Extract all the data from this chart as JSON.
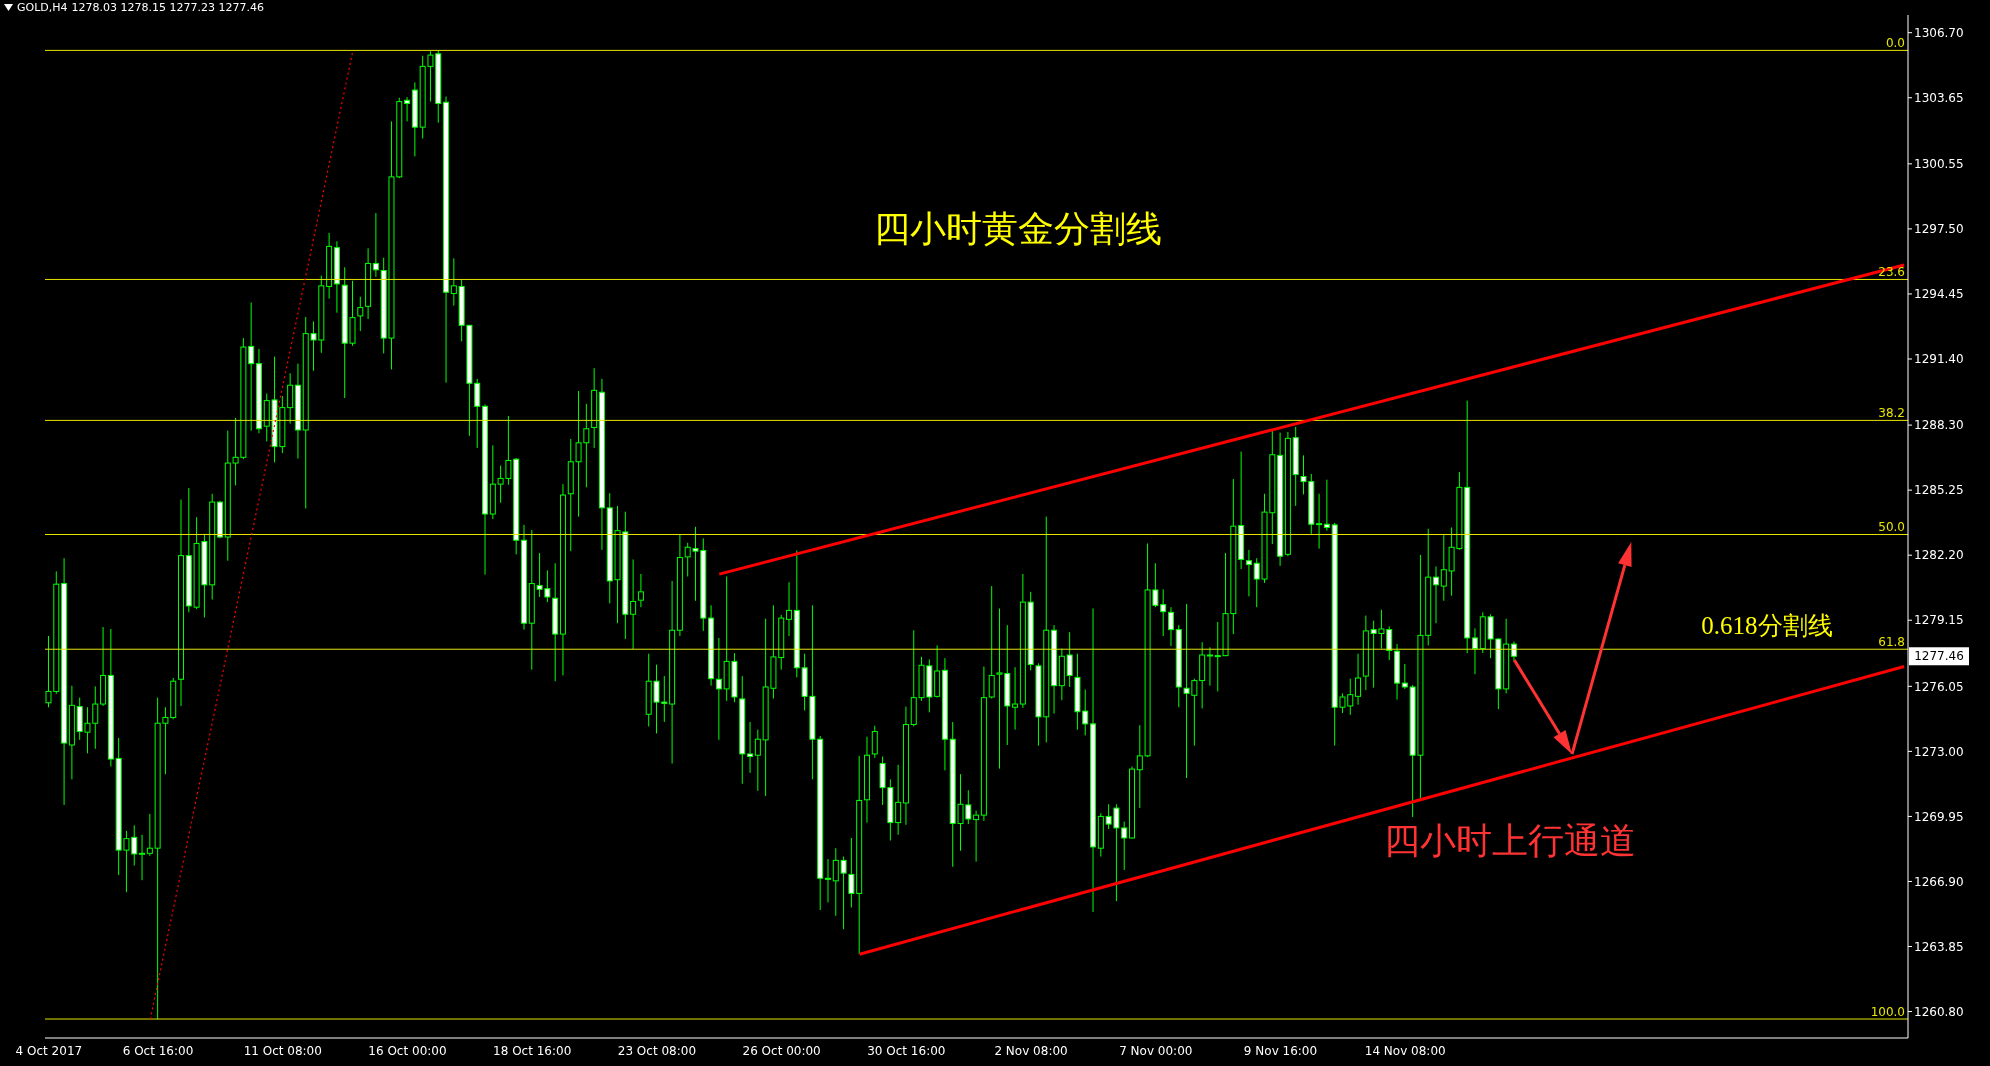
{
  "chart_data": {
    "type": "candlestick",
    "title": "GOLD,H4",
    "subtitle": "1278.03 1278.15 1277.23 1277.46",
    "color": "#00ff00",
    "categories": [
      "4 Oct 2017",
      null,
      null,
      null,
      null,
      null,
      null,
      null,
      null,
      null,
      null,
      null,
      null,
      null,
      "6 Oct 16:00",
      null,
      null,
      null,
      null,
      null,
      null,
      null,
      null,
      null,
      null,
      null,
      null,
      null,
      null,
      null,
      "11 Oct 08:00",
      null,
      null,
      null,
      null,
      null,
      null,
      null,
      null,
      null,
      null,
      null,
      null,
      null,
      null,
      null,
      "16 Oct 00:00",
      null,
      null,
      null,
      null,
      null,
      null,
      null,
      null,
      null,
      null,
      null,
      null,
      null,
      null,
      null,
      "18 Oct 16:00",
      null,
      null,
      null,
      null,
      null,
      null,
      null,
      null,
      null,
      null,
      null,
      null,
      null,
      null,
      null,
      "23 Oct 08:00",
      null,
      null,
      null,
      null,
      null,
      null,
      null,
      null,
      null,
      null,
      null,
      null,
      null,
      null,
      null,
      "26 Oct 00:00",
      null,
      null,
      null,
      null,
      null,
      null,
      null,
      null,
      null,
      null,
      null,
      null,
      null,
      null,
      null,
      "30 Oct 16:00",
      null,
      null,
      null,
      null,
      null,
      null,
      null,
      null,
      null,
      null,
      null,
      null,
      null,
      null,
      null,
      "2 Nov 08:00",
      null,
      null,
      null,
      null,
      null,
      null,
      null,
      null,
      null,
      null,
      null,
      null,
      null,
      null,
      null,
      "7 Nov 00:00",
      null,
      null,
      null,
      null,
      null,
      null,
      null,
      null,
      null,
      null,
      null,
      null,
      null,
      null,
      null,
      "9 Nov 16:00",
      null,
      null,
      null,
      null,
      null,
      null,
      null,
      null,
      null,
      null,
      null,
      null,
      null,
      null,
      null,
      "14 Nov 08:00",
      null,
      null,
      null,
      null,
      null,
      null,
      null,
      null,
      null,
      null,
      null,
      null,
      null,
      null,
      null,
      null,
      null,
      null,
      null,
      null,
      null,
      null,
      null,
      null,
      null,
      null,
      null,
      null,
      null,
      null,
      null,
      null,
      null,
      null,
      null,
      null,
      null,
      null,
      null,
      null,
      null,
      null,
      null,
      null,
      null,
      null,
      null,
      null,
      null,
      null,
      null,
      null,
      null,
      null,
      null,
      null,
      null,
      null,
      null,
      null,
      null,
      null,
      null,
      null
    ],
    "ohlc": [
      [
        1275.28,
        1278.41,
        1275.07,
        1275.81
      ],
      [
        1275.81,
        1281.44,
        1275.7,
        1280.84
      ],
      [
        1280.87,
        1282.06,
        1270.49,
        1273.39
      ],
      [
        1273.3,
        1276.08,
        1271.69,
        1275.16
      ],
      [
        1275.1,
        1275.52,
        1273.54,
        1273.93
      ],
      [
        1273.9,
        1275.07,
        1272.91,
        1274.32
      ],
      [
        1274.32,
        1276.05,
        1273.12,
        1275.22
      ],
      [
        1275.22,
        1278.83,
        1275.13,
        1276.56
      ],
      [
        1276.56,
        1278.74,
        1272.29,
        1272.64
      ],
      [
        1272.67,
        1273.63,
        1267.2,
        1268.37
      ],
      [
        1268.37,
        1269.27,
        1266.4,
        1268.91
      ],
      [
        1268.97,
        1269.53,
        1267.65,
        1268.19
      ],
      [
        1268.22,
        1269.09,
        1266.96,
        1268.22
      ],
      [
        1268.22,
        1270.07,
        1268.1,
        1268.46
      ],
      [
        1268.46,
        1275.52,
        1260.44,
        1274.32
      ],
      [
        1274.32,
        1275.07,
        1271.93,
        1274.59
      ],
      [
        1274.59,
        1276.44,
        1274.5,
        1276.29
      ],
      [
        1276.38,
        1284.81,
        1275.13,
        1282.18
      ],
      [
        1282.18,
        1285.35,
        1279.52,
        1279.82
      ],
      [
        1279.76,
        1283.98,
        1279.67,
        1282.75
      ],
      [
        1282.84,
        1283.2,
        1279.28,
        1280.81
      ],
      [
        1280.81,
        1285.08,
        1280.12,
        1284.69
      ],
      [
        1284.69,
        1284.75,
        1282.99,
        1283.05
      ],
      [
        1283.05,
        1288.04,
        1281.94,
        1286.52
      ],
      [
        1286.52,
        1288.64,
        1285.47,
        1286.79
      ],
      [
        1286.79,
        1292.38,
        1286.7,
        1291.96
      ],
      [
        1291.99,
        1294.05,
        1288.04,
        1291.18
      ],
      [
        1291.18,
        1291.87,
        1287.92,
        1288.13
      ],
      [
        1288.25,
        1289.78,
        1287.53,
        1289.45
      ],
      [
        1289.48,
        1291.51,
        1286.55,
        1287.29
      ],
      [
        1287.29,
        1289.66,
        1286.99,
        1289.12
      ],
      [
        1289.12,
        1290.73,
        1288.37,
        1290.17
      ],
      [
        1290.17,
        1291.18,
        1286.73,
        1288.07
      ],
      [
        1288.07,
        1293.37,
        1284.39,
        1292.59
      ],
      [
        1292.59,
        1293.16,
        1290.85,
        1292.29
      ],
      [
        1292.29,
        1295.31,
        1291.69,
        1294.83
      ],
      [
        1294.8,
        1297.31,
        1294.23,
        1296.68
      ],
      [
        1296.62,
        1296.92,
        1293.57,
        1294.92
      ],
      [
        1294.86,
        1295.7,
        1289.57,
        1292.14
      ],
      [
        1292.14,
        1295.07,
        1292.02,
        1293.34
      ],
      [
        1293.42,
        1294.32,
        1292.71,
        1293.81
      ],
      [
        1293.87,
        1296.59,
        1293.27,
        1295.88
      ],
      [
        1295.88,
        1298.24,
        1295.25,
        1295.58
      ],
      [
        1295.55,
        1296.15,
        1291.66,
        1292.38
      ],
      [
        1292.38,
        1302.54,
        1290.91,
        1299.94
      ],
      [
        1299.94,
        1303.65,
        1299.88,
        1303.47
      ],
      [
        1303.53,
        1303.68,
        1302.54,
        1303.38
      ],
      [
        1304.01,
        1304.37,
        1300.9,
        1302.27
      ],
      [
        1302.27,
        1305.62,
        1301.74,
        1305.12
      ],
      [
        1305.12,
        1305.83,
        1303.47,
        1305.65
      ],
      [
        1305.71,
        1305.87,
        1302.48,
        1303.38
      ],
      [
        1303.44,
        1303.71,
        1290.29,
        1294.53
      ],
      [
        1294.47,
        1296.12,
        1293.9,
        1294.83
      ],
      [
        1294.8,
        1295.1,
        1292.23,
        1292.98
      ],
      [
        1292.98,
        1293,
        1287.8,
        1290.26
      ],
      [
        1290.26,
        1290.47,
        1287.23,
        1289.18
      ],
      [
        1289.18,
        1289.27,
        1281.29,
        1284.13
      ],
      [
        1284.13,
        1287.35,
        1283.89,
        1285.53
      ],
      [
        1285.53,
        1286.4,
        1284.66,
        1285.8
      ],
      [
        1285.8,
        1288.73,
        1285.5,
        1286.64
      ],
      [
        1286.7,
        1286.76,
        1282.24,
        1282.9
      ],
      [
        1282.9,
        1283.62,
        1278.71,
        1279.01
      ],
      [
        1279.01,
        1283.38,
        1276.83,
        1280.87
      ],
      [
        1280.78,
        1282.3,
        1280.24,
        1280.6
      ],
      [
        1280.63,
        1281.49,
        1280,
        1280.24
      ],
      [
        1280.18,
        1281.82,
        1276.29,
        1278.5
      ],
      [
        1278.5,
        1285.53,
        1276.56,
        1285.02
      ],
      [
        1285.08,
        1287.65,
        1282.39,
        1286.58
      ],
      [
        1286.58,
        1289.9,
        1284.01,
        1287.47
      ],
      [
        1287.47,
        1289.3,
        1285.38,
        1288.13
      ],
      [
        1288.19,
        1290.97,
        1287.23,
        1289.93
      ],
      [
        1289.84,
        1290.47,
        1282.45,
        1284.42
      ],
      [
        1284.42,
        1285.11,
        1279.94,
        1280.99
      ],
      [
        1281.05,
        1284.51,
        1279.01,
        1283.35
      ],
      [
        1283.29,
        1284.24,
        1278.27,
        1279.43
      ],
      [
        1279.43,
        1282,
        1277.79,
        1280.03
      ],
      [
        1280.09,
        1281.32,
        1279.76,
        1280.48
      ],
      [
        1274.74,
        1277.58,
        1274.17,
        1276.29
      ],
      [
        1276.29,
        1277.07,
        1273.84,
        1275.31
      ],
      [
        1275.31,
        1276.53,
        1274.38,
        1275.25
      ],
      [
        1275.22,
        1280.99,
        1272.43,
        1278.68
      ],
      [
        1278.68,
        1283.17,
        1278.41,
        1282.09
      ],
      [
        1282.12,
        1282.78,
        1281.2,
        1282.57
      ],
      [
        1282.51,
        1283.53,
        1280.06,
        1282.39
      ],
      [
        1282.42,
        1282.99,
        1278.65,
        1279.25
      ],
      [
        1279.25,
        1279.85,
        1276.08,
        1276.41
      ],
      [
        1276.38,
        1278.32,
        1273.54,
        1275.93
      ],
      [
        1275.93,
        1281.2,
        1275.37,
        1277.22
      ],
      [
        1277.22,
        1277.61,
        1275.31,
        1275.55
      ],
      [
        1275.46,
        1276.53,
        1271.48,
        1272.88
      ],
      [
        1272.88,
        1274.38,
        1271.99,
        1272.76
      ],
      [
        1272.82,
        1274.02,
        1271.15,
        1273.57
      ],
      [
        1273.54,
        1279.22,
        1270.91,
        1276.02
      ],
      [
        1275.96,
        1279.85,
        1275.48,
        1277.43
      ],
      [
        1277.4,
        1279.4,
        1276.83,
        1279.25
      ],
      [
        1279.19,
        1280.93,
        1278.41,
        1279.61
      ],
      [
        1279.61,
        1282.42,
        1276.47,
        1276.92
      ],
      [
        1276.92,
        1277.58,
        1274.92,
        1275.58
      ],
      [
        1275.58,
        1279.85,
        1271.69,
        1273.57
      ],
      [
        1273.57,
        1273.72,
        1265.56,
        1267.05
      ],
      [
        1267.05,
        1267.95,
        1265.92,
        1267
      ],
      [
        1266.93,
        1268.46,
        1265.29,
        1267.89
      ],
      [
        1267.89,
        1268.07,
        1264.66,
        1267.29
      ],
      [
        1267.23,
        1268.94,
        1265.68,
        1266.34
      ],
      [
        1266.34,
        1272.79,
        1263.49,
        1270.7
      ],
      [
        1270.73,
        1273.69,
        1269.66,
        1272.82
      ],
      [
        1272.88,
        1274.2,
        1272.7,
        1273.93
      ],
      [
        1272.43,
        1272.76,
        1270.49,
        1271.3
      ],
      [
        1271.3,
        1271.69,
        1268.82,
        1269.66
      ],
      [
        1269.66,
        1272.37,
        1269.09,
        1270.61
      ],
      [
        1270.58,
        1275.1,
        1269.56,
        1274.26
      ],
      [
        1274.26,
        1278.68,
        1274.17,
        1275.52
      ],
      [
        1275.52,
        1277.43,
        1275.37,
        1277.04
      ],
      [
        1277.01,
        1277.31,
        1274.83,
        1275.55
      ],
      [
        1275.58,
        1277.97,
        1275.52,
        1276.77
      ],
      [
        1276.8,
        1277.37,
        1272.11,
        1273.57
      ],
      [
        1273.57,
        1274.38,
        1267.59,
        1269.62
      ],
      [
        1269.62,
        1271.93,
        1268.34,
        1270.52
      ],
      [
        1270.49,
        1271.18,
        1269.59,
        1269.83
      ],
      [
        1269.8,
        1270.22,
        1267.83,
        1270.01
      ],
      [
        1270.01,
        1276.98,
        1269.74,
        1275.52
      ],
      [
        1275.55,
        1280.75,
        1275.48,
        1276.56
      ],
      [
        1276.62,
        1279.7,
        1272.19,
        1276.68
      ],
      [
        1276.65,
        1278.92,
        1273.3,
        1275.13
      ],
      [
        1275.07,
        1276.95,
        1274.02,
        1275.22
      ],
      [
        1275.22,
        1281.32,
        1275.04,
        1280
      ],
      [
        1280,
        1280.48,
        1276.8,
        1277.07
      ],
      [
        1277.01,
        1277.13,
        1273.27,
        1274.62
      ],
      [
        1274.62,
        1284.01,
        1273.42,
        1278.68
      ],
      [
        1278.68,
        1278.92,
        1274.77,
        1276.08
      ],
      [
        1276.08,
        1277.82,
        1275.4,
        1277.46
      ],
      [
        1277.52,
        1278.59,
        1276.02,
        1276.56
      ],
      [
        1276.47,
        1277.58,
        1274.02,
        1274.86
      ],
      [
        1274.89,
        1275.9,
        1273.75,
        1274.29
      ],
      [
        1274.29,
        1279.7,
        1265.47,
        1268.52
      ],
      [
        1268.46,
        1270.1,
        1268.07,
        1269.95
      ],
      [
        1269.95,
        1270.52,
        1269.36,
        1269.59
      ],
      [
        1270.34,
        1270.52,
        1265.98,
        1269.41
      ],
      [
        1269.41,
        1269.71,
        1267.44,
        1268.94
      ],
      [
        1268.94,
        1272.29,
        1268.91,
        1272.17
      ],
      [
        1272.14,
        1274.23,
        1270.34,
        1272.79
      ],
      [
        1272.79,
        1282.75,
        1272.73,
        1280.57
      ],
      [
        1280.57,
        1281.82,
        1279.76,
        1279.85
      ],
      [
        1279.88,
        1280.6,
        1278.41,
        1279.55
      ],
      [
        1279.52,
        1279.76,
        1277.94,
        1278.71
      ],
      [
        1278.71,
        1278.92,
        1275.07,
        1276.02
      ],
      [
        1275.96,
        1279.91,
        1271.75,
        1275.72
      ],
      [
        1275.63,
        1276.41,
        1273.27,
        1276.32
      ],
      [
        1276.32,
        1278.12,
        1275.01,
        1277.52
      ],
      [
        1277.52,
        1277.88,
        1276.08,
        1277.49
      ],
      [
        1277.49,
        1279.07,
        1275.81,
        1277.46
      ],
      [
        1277.49,
        1282.3,
        1277.46,
        1279.46
      ],
      [
        1279.46,
        1285.77,
        1278.5,
        1283.56
      ],
      [
        1283.59,
        1287.06,
        1281.55,
        1282
      ],
      [
        1281.94,
        1282.45,
        1280.27,
        1281.76
      ],
      [
        1281.82,
        1282.06,
        1279.76,
        1281.08
      ],
      [
        1281.08,
        1285.08,
        1280.9,
        1284.22
      ],
      [
        1284.19,
        1288.04,
        1282.72,
        1286.91
      ],
      [
        1286.88,
        1287.95,
        1281.7,
        1282.15
      ],
      [
        1282.24,
        1287.98,
        1282.15,
        1287.68
      ],
      [
        1287.71,
        1288.22,
        1284.51,
        1285.98
      ],
      [
        1285.89,
        1286.88,
        1285.05,
        1285.65
      ],
      [
        1285.65,
        1286.01,
        1283.2,
        1283.65
      ],
      [
        1283.65,
        1285.08,
        1282.51,
        1283.68
      ],
      [
        1283.65,
        1285.74,
        1283.35,
        1283.5
      ],
      [
        1283.62,
        1283.71,
        1273.27,
        1275.07
      ],
      [
        1275.07,
        1275.72,
        1274.8,
        1275.55
      ],
      [
        1275.13,
        1276.41,
        1274.71,
        1275.66
      ],
      [
        1275.58,
        1277.58,
        1275.19,
        1276.44
      ],
      [
        1276.53,
        1279.37,
        1275.87,
        1278.65
      ],
      [
        1278.71,
        1279.13,
        1275.99,
        1278.53
      ],
      [
        1278.53,
        1279.64,
        1277.82,
        1278.74
      ],
      [
        1278.71,
        1278.86,
        1277.28,
        1277.73
      ],
      [
        1277.7,
        1278.03,
        1275.43,
        1276.2
      ],
      [
        1276.2,
        1277.1,
        1275.93,
        1276.02
      ],
      [
        1276.02,
        1276.11,
        1269.92,
        1272.82
      ],
      [
        1272.82,
        1282.21,
        1270.79,
        1278.44
      ],
      [
        1278.44,
        1283.44,
        1277.97,
        1281.17
      ],
      [
        1281.17,
        1281.67,
        1279.01,
        1280.81
      ],
      [
        1280.75,
        1283.14,
        1280.06,
        1281.52
      ],
      [
        1281.46,
        1283.5,
        1280.3,
        1282.57
      ],
      [
        1282.51,
        1286.1,
        1282.45,
        1285.38
      ],
      [
        1285.38,
        1289.45,
        1277.61,
        1278.32
      ],
      [
        1278.32,
        1278.77,
        1276.62,
        1277.82
      ],
      [
        1277.82,
        1279.52,
        1277.61,
        1279.31
      ],
      [
        1279.31,
        1279.43,
        1277.37,
        1278.27
      ],
      [
        1278.27,
        1278.3,
        1274.98,
        1275.93
      ],
      [
        1275.93,
        1279.22,
        1275.72,
        1278.03
      ],
      [
        1278.03,
        1278.15,
        1277.23,
        1277.46
      ],
      null,
      null,
      null,
      null,
      null,
      null,
      null,
      null,
      null,
      null,
      null,
      null,
      null,
      null,
      null,
      null,
      null,
      null,
      null,
      null,
      null,
      null,
      null,
      null,
      null,
      null,
      null,
      null,
      null,
      null,
      null,
      null,
      null,
      null,
      null,
      null,
      null,
      null,
      null,
      null,
      null,
      null,
      null,
      null,
      null,
      null,
      null,
      null,
      null,
      null
    ],
    "series": [
      {
        "type": "line",
        "color": "#ff0000",
        "line_style": "solid",
        "values": [
          null,
          null,
          null,
          null,
          null,
          null,
          null,
          null,
          null,
          null,
          null,
          null,
          null,
          null,
          null,
          null,
          null,
          null,
          null,
          null,
          null,
          null,
          null,
          null,
          null,
          null,
          null,
          null,
          null,
          null,
          null,
          null,
          null,
          null,
          null,
          null,
          null,
          null,
          null,
          null,
          null,
          null,
          null,
          null,
          null,
          null,
          null,
          null,
          null,
          null,
          null,
          null,
          null,
          null,
          null,
          null,
          null,
          null,
          null,
          null,
          null,
          null,
          null,
          null,
          null,
          null,
          null,
          null,
          null,
          null,
          null,
          null,
          null,
          null,
          null,
          null,
          null,
          null,
          null,
          null,
          null,
          null,
          null,
          null,
          null,
          null,
          1281.31,
          null,
          null,
          null,
          null,
          null,
          null,
          null,
          null,
          null,
          null,
          null,
          null,
          null,
          null,
          null,
          null,
          null,
          null,
          null,
          null,
          null,
          null,
          null,
          null,
          null,
          null,
          null,
          null,
          null,
          null,
          null,
          null,
          null,
          null,
          null,
          null,
          null,
          null,
          null,
          null,
          null,
          null,
          null,
          null,
          null,
          null,
          null,
          null,
          null,
          null,
          null,
          null,
          null,
          null,
          null,
          null,
          null,
          null,
          null,
          null,
          null,
          null,
          null,
          null,
          null,
          null,
          null,
          null,
          null,
          null,
          null,
          null,
          null,
          null,
          null,
          null,
          null,
          null,
          null,
          null,
          null,
          null,
          null,
          null,
          null,
          null,
          null,
          null,
          null,
          null,
          null,
          null,
          null,
          null,
          null,
          null,
          null,
          null,
          null,
          null,
          null,
          null,
          null,
          null,
          null,
          null,
          null,
          null,
          null,
          null,
          null,
          null,
          null,
          null,
          null,
          null,
          null,
          null,
          null,
          null,
          null,
          null,
          null,
          null,
          null,
          null,
          null,
          null,
          null,
          null,
          null,
          null,
          null,
          null,
          null,
          null,
          null,
          null,
          null,
          null,
          null,
          null,
          null,
          null,
          null,
          null,
          null,
          null,
          null,
          null,
          null,
          1295.81
        ]
      },
      {
        "type": "line",
        "color": "#ff0000",
        "line_style": "solid",
        "values": [
          null,
          null,
          null,
          null,
          null,
          null,
          null,
          null,
          null,
          null,
          null,
          null,
          null,
          null,
          null,
          null,
          null,
          null,
          null,
          null,
          null,
          null,
          null,
          null,
          null,
          null,
          null,
          null,
          null,
          null,
          null,
          null,
          null,
          null,
          null,
          null,
          null,
          null,
          null,
          null,
          null,
          null,
          null,
          null,
          null,
          null,
          null,
          null,
          null,
          null,
          null,
          null,
          null,
          null,
          null,
          null,
          null,
          null,
          null,
          null,
          null,
          null,
          null,
          null,
          null,
          null,
          null,
          null,
          null,
          null,
          null,
          null,
          null,
          null,
          null,
          null,
          null,
          null,
          null,
          null,
          null,
          null,
          null,
          null,
          null,
          null,
          null,
          null,
          null,
          null,
          null,
          null,
          null,
          null,
          null,
          null,
          null,
          null,
          null,
          null,
          null,
          null,
          null,
          null,
          1263.49,
          null,
          null,
          null,
          null,
          null,
          null,
          null,
          null,
          null,
          null,
          null,
          null,
          null,
          null,
          null,
          null,
          null,
          null,
          null,
          null,
          null,
          null,
          null,
          null,
          null,
          null,
          null,
          null,
          null,
          null,
          null,
          null,
          null,
          null,
          null,
          null,
          null,
          null,
          null,
          null,
          null,
          null,
          null,
          null,
          null,
          null,
          null,
          null,
          null,
          null,
          null,
          null,
          null,
          null,
          null,
          null,
          null,
          null,
          null,
          null,
          null,
          null,
          null,
          null,
          null,
          null,
          null,
          null,
          null,
          null,
          null,
          null,
          null,
          null,
          null,
          null,
          null,
          null,
          null,
          null,
          null,
          null,
          null,
          null,
          null,
          null,
          null,
          null,
          null,
          null,
          null,
          null,
          null,
          null,
          null,
          null,
          null,
          null,
          null,
          null,
          null,
          null,
          null,
          null,
          null,
          null,
          null,
          null,
          null,
          null,
          null,
          null,
          null,
          null,
          null,
          null,
          null,
          null,
          null,
          null,
          null,
          null,
          null,
          null,
          null,
          null,
          null,
          null,
          null,
          null,
          null,
          null,
          null,
          1276.98
        ]
      },
      {
        "type": "line",
        "color": "#ff0000",
        "line_style": "dotted",
        "values": [
          null,
          null,
          null,
          null,
          null,
          null,
          null,
          null,
          null,
          null,
          null,
          null,
          null,
          1260.44,
          null,
          null,
          null,
          null,
          null,
          null,
          null,
          null,
          null,
          null,
          null,
          null,
          null,
          null,
          null,
          null,
          null,
          null,
          null,
          null,
          null,
          null,
          null,
          null,
          null,
          1305.86,
          null,
          null,
          null,
          null,
          null,
          null,
          null,
          null,
          null,
          null,
          null,
          null,
          null,
          null,
          null,
          null,
          null,
          null,
          null,
          null,
          null,
          null,
          null,
          null,
          null,
          null,
          null,
          null,
          null,
          null,
          null,
          null,
          null,
          null,
          null,
          null,
          null,
          null,
          null,
          null,
          null,
          null,
          null,
          null,
          null,
          null,
          null,
          null,
          null,
          null,
          null,
          null,
          null,
          null,
          null,
          null,
          null,
          null,
          null,
          null,
          null,
          null,
          null,
          null,
          null,
          null,
          null,
          null,
          null,
          null,
          null,
          null,
          null,
          null,
          null,
          null,
          null,
          null,
          null,
          null,
          null,
          null,
          null,
          null,
          null,
          null,
          null,
          null,
          null,
          null,
          null,
          null,
          null,
          null,
          null,
          null,
          null,
          null,
          null,
          null,
          null,
          null,
          null,
          null,
          null,
          null,
          null,
          null,
          null,
          null,
          null,
          null,
          null,
          null,
          null,
          null,
          null,
          null,
          null,
          null,
          null,
          null,
          null,
          null,
          null,
          null,
          null,
          null,
          null,
          null,
          null,
          null,
          null,
          null,
          null,
          null,
          null,
          null,
          null,
          null,
          null,
          null,
          null,
          null,
          null,
          null,
          null,
          null,
          null,
          null,
          null,
          null,
          null,
          null,
          null,
          null,
          null,
          null,
          null,
          null,
          null,
          null,
          null,
          null,
          null,
          null,
          null,
          null,
          null,
          null,
          null,
          null,
          null,
          null,
          null,
          null,
          null,
          null,
          null,
          null,
          null,
          null,
          null,
          null,
          null,
          null,
          null,
          null,
          null,
          null,
          null,
          null,
          null,
          null,
          null,
          null,
          null,
          null,
          null
        ]
      }
    ],
    "ylim": [
      1259.56,
      1307.53
    ],
    "yticks": [
      {
        "value": 1306.7,
        "label": "1306.70"
      },
      {
        "value": 1303.65,
        "label": "1303.65"
      },
      {
        "value": 1300.55,
        "label": "1300.55"
      },
      {
        "value": 1297.5,
        "label": "1297.50"
      },
      {
        "value": 1294.45,
        "label": "1294.45"
      },
      {
        "value": 1291.4,
        "label": "1291.40"
      },
      {
        "value": 1288.3,
        "label": "1288.30"
      },
      {
        "value": 1285.25,
        "label": "1285.25"
      },
      {
        "value": 1282.2,
        "label": "1282.20"
      },
      {
        "value": 1279.15,
        "label": "1279.15"
      },
      {
        "value": 1276.05,
        "label": "1276.05"
      },
      {
        "value": 1273,
        "label": "1273.00"
      },
      {
        "value": 1269.95,
        "label": "1269.95"
      },
      {
        "value": 1266.9,
        "label": "1266.90"
      },
      {
        "value": 1263.85,
        "label": "1263.85"
      },
      {
        "value": 1260.8,
        "label": "1260.80"
      }
    ],
    "ref_lines": [
      {
        "axis": "y",
        "value": 1305.87,
        "color": "#e6e600"
      },
      {
        "axis": "y",
        "value": 1295.13,
        "color": "#e6e600"
      },
      {
        "axis": "y",
        "value": 1288.52,
        "color": "#e6e600"
      },
      {
        "axis": "y",
        "value": 1283.17,
        "color": "#e6e600"
      },
      {
        "axis": "y",
        "value": 1277.79,
        "color": "#e6e600"
      },
      {
        "axis": "y",
        "value": 1260.45,
        "color": "#e6e600"
      }
    ],
    "annotations": [
      "四小时黄金分割线",
      "0.618分割线",
      "四小时上行通道",
      "1277.46",
      {
        "text": "0.0",
        "y": 1305.87
      },
      {
        "text": "23.6",
        "y": 1295.13
      },
      {
        "text": "38.2",
        "y": 1288.52
      },
      {
        "text": "50.0",
        "y": 1283.17
      },
      {
        "text": "61.8",
        "y": 1277.79
      },
      {
        "text": "100.0",
        "y": 1260.45
      }
    ]
  }
}
